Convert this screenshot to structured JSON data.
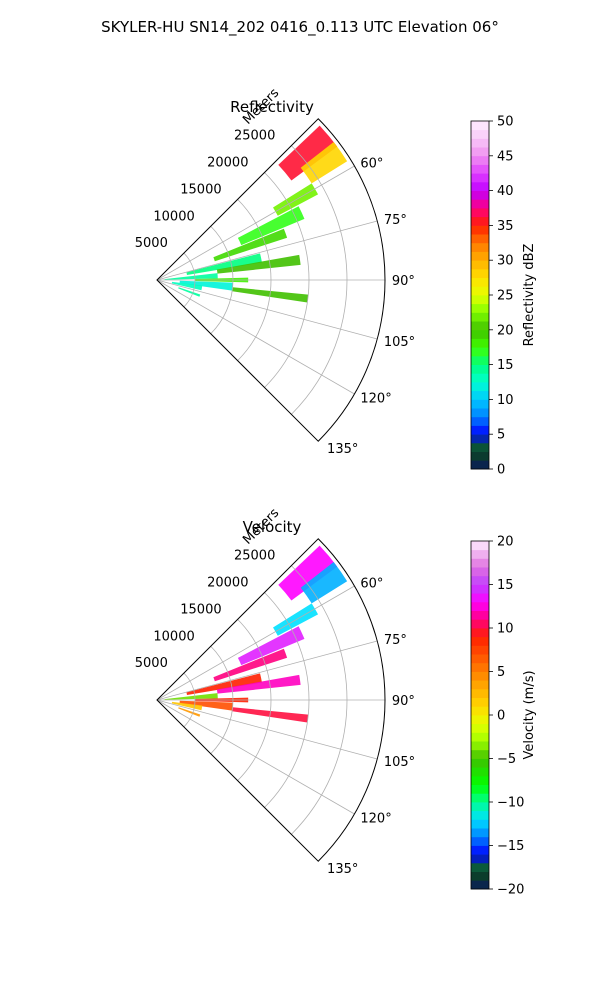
{
  "figure": {
    "suptitle": "SKYLER-HU  SN14_202  0416_0.113 UTC Elevation 06°"
  },
  "chart_data": [
    {
      "type": "polar-sector",
      "title": "Reflectivity",
      "radial_label": "Meters",
      "theta_range_deg": [
        45,
        135
      ],
      "theta_ticks": [
        "60°",
        "75°",
        "90°",
        "105°",
        "120°",
        "135°"
      ],
      "theta_tick_values": [
        60,
        75,
        90,
        105,
        120,
        135
      ],
      "r_max": 30000,
      "r_ticks": [
        "5000",
        "10000",
        "15000",
        "20000",
        "25000"
      ],
      "r_tick_values": [
        5000,
        10000,
        15000,
        20000,
        25000
      ],
      "grid": true,
      "colorbar": {
        "label": "Reflectivity dBZ",
        "vmin": 0,
        "vmax": 50,
        "ticks": [
          "0",
          "5",
          "10",
          "15",
          "20",
          "25",
          "30",
          "35",
          "40",
          "45",
          "50"
        ],
        "tick_values": [
          0,
          5,
          10,
          15,
          20,
          25,
          30,
          35,
          40,
          45,
          50
        ],
        "colormap": [
          {
            "v": 0,
            "c": "#0a1a5c"
          },
          {
            "v": 2,
            "c": "#0b3d2c"
          },
          {
            "v": 3.5,
            "c": "#0b5a3a"
          },
          {
            "v": 5,
            "c": "#0000ff"
          },
          {
            "v": 7.5,
            "c": "#0080ff"
          },
          {
            "v": 10,
            "c": "#00c8ff"
          },
          {
            "v": 12.5,
            "c": "#00ffd0"
          },
          {
            "v": 15,
            "c": "#00ff80"
          },
          {
            "v": 17.5,
            "c": "#40ff00"
          },
          {
            "v": 20,
            "c": "#40c000"
          },
          {
            "v": 22.5,
            "c": "#80ff00"
          },
          {
            "v": 25,
            "c": "#e6ff00"
          },
          {
            "v": 27.5,
            "c": "#ffe000"
          },
          {
            "v": 30,
            "c": "#ffb000"
          },
          {
            "v": 32.5,
            "c": "#ff7800"
          },
          {
            "v": 35,
            "c": "#ff2000"
          },
          {
            "v": 37.5,
            "c": "#ff0080"
          },
          {
            "v": 40,
            "c": "#c000ff"
          },
          {
            "v": 42.5,
            "c": "#e040ff"
          },
          {
            "v": 45,
            "c": "#f090f0"
          },
          {
            "v": 47.5,
            "c": "#f8c8f8"
          },
          {
            "v": 50,
            "c": "#ffeeff"
          }
        ]
      },
      "echoes": [
        {
          "theta": 50,
          "r0": 22000,
          "r1": 29500,
          "dtheta": 7,
          "value": 36
        },
        {
          "theta": 55,
          "r0": 24000,
          "r1": 29500,
          "dtheta": 6,
          "value": 28
        },
        {
          "theta": 60,
          "r0": 18000,
          "r1": 24000,
          "dtheta": 4,
          "value": 22
        },
        {
          "theta": 65,
          "r0": 12000,
          "r1": 21000,
          "dtheta": 5,
          "value": 17
        },
        {
          "theta": 70,
          "r0": 8000,
          "r1": 18000,
          "dtheta": 4,
          "value": 19
        },
        {
          "theta": 78,
          "r0": 4000,
          "r1": 14000,
          "dtheta": 5,
          "value": 15
        },
        {
          "theta": 82,
          "r0": 8000,
          "r1": 19000,
          "dtheta": 4,
          "value": 20
        },
        {
          "theta": 86,
          "r0": 1000,
          "r1": 8000,
          "dtheta": 5,
          "value": 14
        },
        {
          "theta": 90,
          "r0": 5000,
          "r1": 12000,
          "dtheta": 3,
          "value": 18
        },
        {
          "theta": 95,
          "r0": 3000,
          "r1": 10000,
          "dtheta": 6,
          "value": 12
        },
        {
          "theta": 100,
          "r0": 2000,
          "r1": 6000,
          "dtheta": 6,
          "value": 13
        },
        {
          "theta": 97,
          "r0": 10000,
          "r1": 20000,
          "dtheta": 3,
          "value": 20
        },
        {
          "theta": 110,
          "r0": 3000,
          "r1": 6000,
          "dtheta": 3,
          "value": 14
        }
      ]
    },
    {
      "type": "polar-sector",
      "title": "Velocity",
      "radial_label": "Meters",
      "theta_range_deg": [
        45,
        135
      ],
      "theta_ticks": [
        "60°",
        "75°",
        "90°",
        "105°",
        "120°",
        "135°"
      ],
      "theta_tick_values": [
        60,
        75,
        90,
        105,
        120,
        135
      ],
      "r_max": 30000,
      "r_ticks": [
        "5000",
        "10000",
        "15000",
        "20000",
        "25000"
      ],
      "r_tick_values": [
        5000,
        10000,
        15000,
        20000,
        25000
      ],
      "grid": true,
      "colorbar": {
        "label": "Velocity (m/s)",
        "vmin": -20,
        "vmax": 20,
        "ticks": [
          "−20",
          "−15",
          "−10",
          "−5",
          "0",
          "5",
          "10",
          "15",
          "20"
        ],
        "tick_values": [
          -20,
          -15,
          -10,
          -5,
          0,
          5,
          10,
          15,
          20
        ],
        "colormap": [
          {
            "v": -20,
            "c": "#0a1a5c"
          },
          {
            "v": -18.5,
            "c": "#0b3d2c"
          },
          {
            "v": -17.5,
            "c": "#0b5a3a"
          },
          {
            "v": -16,
            "c": "#0000ff"
          },
          {
            "v": -14,
            "c": "#0080ff"
          },
          {
            "v": -12,
            "c": "#00e0ff"
          },
          {
            "v": -10,
            "c": "#00ff90"
          },
          {
            "v": -8,
            "c": "#00ff00"
          },
          {
            "v": -5,
            "c": "#40c000"
          },
          {
            "v": -3,
            "c": "#a0ff00"
          },
          {
            "v": -1,
            "c": "#e6ff00"
          },
          {
            "v": 1,
            "c": "#ffd800"
          },
          {
            "v": 3,
            "c": "#ffb000"
          },
          {
            "v": 5,
            "c": "#ff8000"
          },
          {
            "v": 7,
            "c": "#ff5000"
          },
          {
            "v": 9,
            "c": "#ff2000"
          },
          {
            "v": 11,
            "c": "#ff0080"
          },
          {
            "v": 13,
            "c": "#ff00ff"
          },
          {
            "v": 15,
            "c": "#c040ff"
          },
          {
            "v": 17,
            "c": "#e070e0"
          },
          {
            "v": 19,
            "c": "#f4c4f4"
          },
          {
            "v": 20,
            "c": "#ffeeff"
          }
        ]
      },
      "echoes": [
        {
          "theta": 50,
          "r0": 22000,
          "r1": 29500,
          "dtheta": 7,
          "value": 13
        },
        {
          "theta": 55,
          "r0": 24000,
          "r1": 29500,
          "dtheta": 6,
          "value": -13
        },
        {
          "theta": 60,
          "r0": 18000,
          "r1": 24000,
          "dtheta": 4,
          "value": -12
        },
        {
          "theta": 65,
          "r0": 12000,
          "r1": 21000,
          "dtheta": 5,
          "value": 14
        },
        {
          "theta": 70,
          "r0": 8000,
          "r1": 18000,
          "dtheta": 4,
          "value": 11
        },
        {
          "theta": 78,
          "r0": 4000,
          "r1": 14000,
          "dtheta": 5,
          "value": 9
        },
        {
          "theta": 82,
          "r0": 8000,
          "r1": 19000,
          "dtheta": 4,
          "value": 12
        },
        {
          "theta": 86,
          "r0": 1000,
          "r1": 8000,
          "dtheta": 5,
          "value": -4
        },
        {
          "theta": 90,
          "r0": 5000,
          "r1": 12000,
          "dtheta": 3,
          "value": 9
        },
        {
          "theta": 95,
          "r0": 3000,
          "r1": 10000,
          "dtheta": 6,
          "value": 7
        },
        {
          "theta": 100,
          "r0": 2000,
          "r1": 6000,
          "dtheta": 6,
          "value": 2
        },
        {
          "theta": 97,
          "r0": 10000,
          "r1": 20000,
          "dtheta": 3,
          "value": 10
        },
        {
          "theta": 110,
          "r0": 3000,
          "r1": 6000,
          "dtheta": 3,
          "value": 4
        }
      ]
    }
  ]
}
